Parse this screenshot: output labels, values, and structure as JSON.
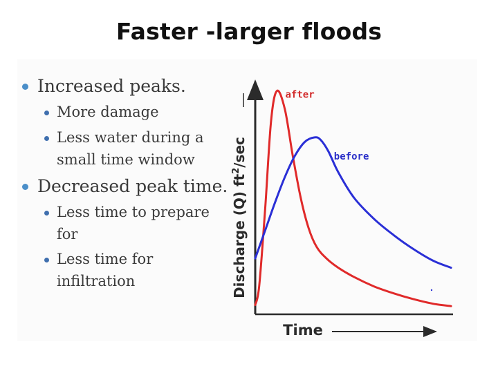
{
  "slide": {
    "title": "Faster -larger floods"
  },
  "bullets": [
    {
      "text": "Increased peaks.",
      "subs": [
        "More damage",
        "Less water during a small time window"
      ]
    },
    {
      "text": "Decreased peak time.",
      "subs": [
        "Less time to prepare for",
        "Less time for infiltration"
      ]
    }
  ],
  "chart_data": {
    "type": "line",
    "title": "",
    "xlabel": "Time",
    "ylabel_main": "Discharge (Q) ft",
    "ylabel_sup": "2",
    "ylabel_tail": "/sec",
    "xlim": [
      0,
      10
    ],
    "ylim": [
      0,
      10
    ],
    "grid": false,
    "series": [
      {
        "name": "after",
        "color": "#e02a2a",
        "x": [
          0,
          0.2,
          0.5,
          0.8,
          1.1,
          1.5,
          1.9,
          2.3,
          2.7,
          3.1,
          3.6,
          4.2,
          5.0,
          6.0,
          7.0,
          8.0,
          9.0,
          9.9
        ],
        "y": [
          0.4,
          1.2,
          4.5,
          8.3,
          9.6,
          8.8,
          6.8,
          5.0,
          3.7,
          2.9,
          2.4,
          2.0,
          1.6,
          1.2,
          0.9,
          0.65,
          0.45,
          0.35
        ]
      },
      {
        "name": "before",
        "color": "#2a2fd6",
        "x": [
          0,
          0.5,
          1.0,
          1.5,
          2.0,
          2.5,
          3.0,
          3.3,
          3.7,
          4.2,
          5.0,
          6.0,
          7.0,
          8.0,
          9.0,
          9.9
        ],
        "y": [
          2.4,
          3.6,
          4.8,
          5.9,
          6.8,
          7.4,
          7.6,
          7.5,
          7.0,
          6.1,
          5.0,
          4.1,
          3.4,
          2.8,
          2.3,
          2.0
        ]
      }
    ]
  }
}
